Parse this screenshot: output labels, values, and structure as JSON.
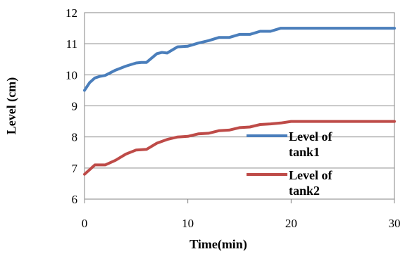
{
  "chart_data": {
    "type": "line",
    "title": "",
    "xlabel": "Time(min)",
    "ylabel": "Level (cm)",
    "xlim": [
      0,
      30
    ],
    "ylim": [
      6,
      12
    ],
    "x_ticks": [
      0,
      10,
      20,
      30
    ],
    "y_ticks": [
      6,
      7,
      8,
      9,
      10,
      11,
      12
    ],
    "grid": "horizontal",
    "legend_position": "right",
    "series": [
      {
        "name_lines": [
          "Level of",
          "tank1"
        ],
        "color": "#4a7ebb",
        "points": [
          [
            0,
            9.5
          ],
          [
            0.5,
            9.75
          ],
          [
            1,
            9.9
          ],
          [
            1.5,
            9.95
          ],
          [
            2,
            9.98
          ],
          [
            3,
            10.15
          ],
          [
            4,
            10.28
          ],
          [
            5,
            10.38
          ],
          [
            5.5,
            10.4
          ],
          [
            6,
            10.4
          ],
          [
            7,
            10.68
          ],
          [
            7.5,
            10.72
          ],
          [
            8,
            10.7
          ],
          [
            9,
            10.9
          ],
          [
            10,
            10.92
          ],
          [
            11,
            11.02
          ],
          [
            12,
            11.1
          ],
          [
            13,
            11.2
          ],
          [
            14,
            11.2
          ],
          [
            15,
            11.3
          ],
          [
            16,
            11.3
          ],
          [
            17,
            11.4
          ],
          [
            18,
            11.4
          ],
          [
            19,
            11.5
          ],
          [
            20,
            11.5
          ],
          [
            25,
            11.5
          ],
          [
            30,
            11.5
          ]
        ]
      },
      {
        "name_lines": [
          "Level of",
          "tank2"
        ],
        "color": "#be4b48",
        "points": [
          [
            0,
            6.8
          ],
          [
            1,
            7.1
          ],
          [
            2,
            7.1
          ],
          [
            3,
            7.25
          ],
          [
            4,
            7.45
          ],
          [
            5,
            7.58
          ],
          [
            6,
            7.6
          ],
          [
            7,
            7.8
          ],
          [
            8,
            7.92
          ],
          [
            9,
            8.0
          ],
          [
            10,
            8.02
          ],
          [
            11,
            8.1
          ],
          [
            12,
            8.12
          ],
          [
            13,
            8.2
          ],
          [
            14,
            8.22
          ],
          [
            15,
            8.3
          ],
          [
            16,
            8.32
          ],
          [
            17,
            8.4
          ],
          [
            18,
            8.42
          ],
          [
            19,
            8.45
          ],
          [
            20,
            8.5
          ],
          [
            25,
            8.5
          ],
          [
            30,
            8.5
          ]
        ]
      }
    ]
  }
}
